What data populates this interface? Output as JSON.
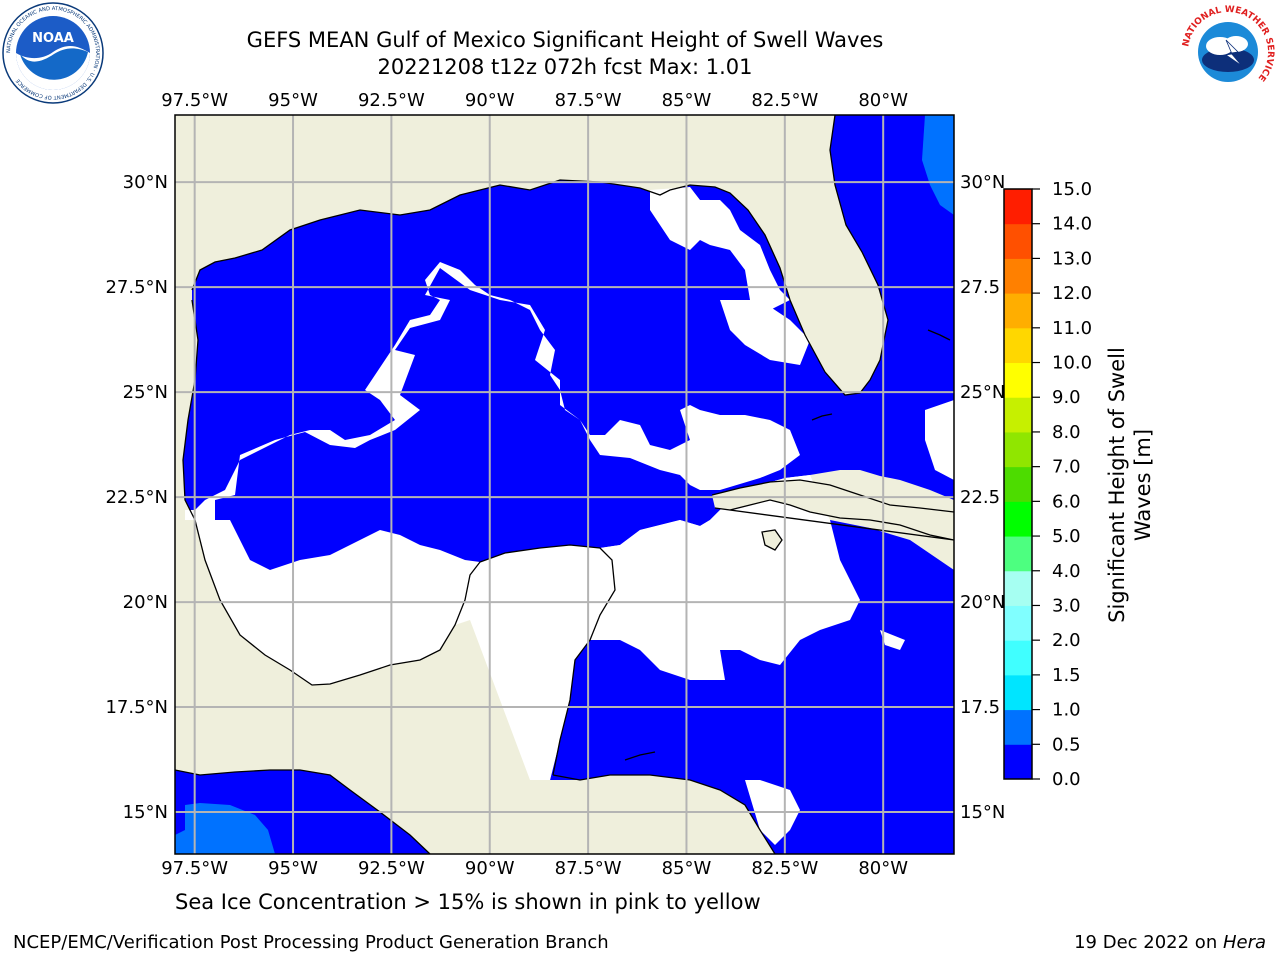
{
  "title": {
    "line1": "GEFS MEAN Gulf of Mexico Significant Height of Swell Waves",
    "line2": "20221208 t12z 072h fcst   Max: 1.01"
  },
  "map": {
    "lon_labels": [
      "97.5°W",
      "95°W",
      "92.5°W",
      "90°W",
      "87.5°W",
      "85°W",
      "82.5°W",
      "80°W"
    ],
    "lon_values": [
      -97.5,
      -95,
      -92.5,
      -90,
      -87.5,
      -85,
      -82.5,
      -80
    ],
    "lat_labels_left": [
      "30°N",
      "27.5°N",
      "25°N",
      "22.5°N",
      "20°N",
      "17.5°N",
      "15°N"
    ],
    "lat_labels_right": [
      "30°N",
      "27.5",
      "25°N",
      "22.5",
      "20°N",
      "17.5",
      "15°N"
    ],
    "lat_values": [
      30,
      27.5,
      25,
      22.5,
      20,
      17.5,
      15
    ],
    "extent": {
      "lon_min": -98,
      "lon_max": -78.2,
      "lat_min": 14,
      "lat_max": 31.6
    },
    "colors": {
      "land": "#efefdc",
      "sea_low": "#0000ff",
      "sea_mid": "#0072ff",
      "no_data": "#ffffff",
      "grid": "#b4b4b4",
      "coast": "#000000"
    }
  },
  "colorbar": {
    "label": "Significant Height of Swell Waves [m]",
    "label_line1": "Significant Height of Swell",
    "label_line2": "Waves [m]",
    "ticks": [
      "15.0",
      "14.0",
      "13.0",
      "12.0",
      "11.0",
      "10.0",
      "9.0",
      "8.0",
      "7.0",
      "6.0",
      "5.0",
      "4.0",
      "3.0",
      "2.0",
      "1.5",
      "1.0",
      "0.5",
      "0.0"
    ],
    "colors_bottom_to_top": [
      "#0000ff",
      "#0072ff",
      "#00e5ff",
      "#40ffff",
      "#80ffff",
      "#a6fff2",
      "#4dff80",
      "#00ff00",
      "#4ddc00",
      "#90e600",
      "#c6f000",
      "#ffff00",
      "#ffd700",
      "#ffae00",
      "#ff8000",
      "#ff5000",
      "#ff1e00"
    ]
  },
  "caption": "Sea Ice Concentration > 15% is shown in pink to yellow",
  "footer": {
    "left": "NCEP/EMC/Verification Post Processing Product Generation Branch",
    "right_date": "19 Dec 2022 on ",
    "right_host": "Hera"
  },
  "logos": {
    "noaa_label": "NOAA",
    "noaa_ring": "NATIONAL OCEANIC AND ATMOSPHERIC ADMINISTRATION · U.S. DEPARTMENT OF COMMERCE",
    "nws_ring": "NATIONAL WEATHER SERVICE"
  }
}
